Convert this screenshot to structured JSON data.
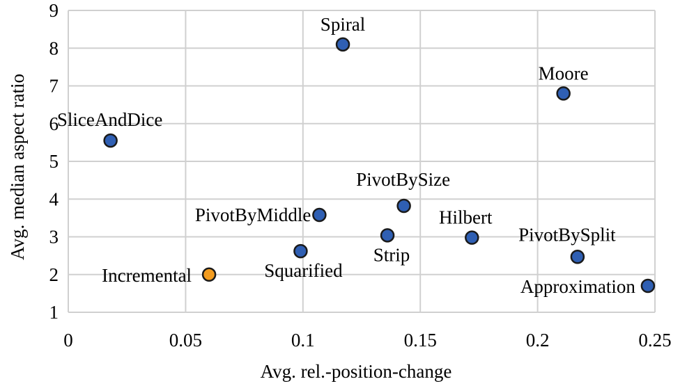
{
  "chart_data": {
    "type": "scatter",
    "title": "",
    "xlabel": "Avg. rel.-position-change",
    "ylabel": "Avg. median aspect ratio",
    "xlim": [
      0,
      0.25
    ],
    "ylim": [
      1,
      9
    ],
    "xticks": [
      0,
      0.05,
      0.1,
      0.15,
      0.2,
      0.25
    ],
    "xtick_labels": [
      "0",
      "0.05",
      "0.1",
      "0.15",
      "0.2",
      "0.25"
    ],
    "yticks": [
      1,
      2,
      3,
      4,
      5,
      6,
      7,
      8,
      9
    ],
    "ytick_labels": [
      "1",
      "2",
      "3",
      "4",
      "5",
      "6",
      "7",
      "8",
      "9"
    ],
    "grid": true,
    "legend": "none",
    "colors": {
      "default": "#2f5fb3",
      "highlight": "#f39c1f",
      "outline": "#1a1a1a"
    },
    "points": [
      {
        "label": "Spiral",
        "x": 0.117,
        "y": 8.1,
        "color": "#2f5fb3"
      },
      {
        "label": "Moore",
        "x": 0.211,
        "y": 6.8,
        "color": "#2f5fb3"
      },
      {
        "label": "SliceAndDice",
        "x": 0.018,
        "y": 5.55,
        "color": "#2f5fb3"
      },
      {
        "label": "PivotBySize",
        "x": 0.143,
        "y": 3.82,
        "color": "#2f5fb3"
      },
      {
        "label": "PivotByMiddle",
        "x": 0.107,
        "y": 3.58,
        "color": "#2f5fb3"
      },
      {
        "label": "Hilbert",
        "x": 0.172,
        "y": 2.98,
        "color": "#2f5fb3"
      },
      {
        "label": "Strip",
        "x": 0.136,
        "y": 3.04,
        "color": "#2f5fb3"
      },
      {
        "label": "PivotBySplit",
        "x": 0.217,
        "y": 2.47,
        "color": "#2f5fb3"
      },
      {
        "label": "Squarified",
        "x": 0.099,
        "y": 2.62,
        "color": "#2f5fb3"
      },
      {
        "label": "Incremental",
        "x": 0.06,
        "y": 2.0,
        "color": "#f39c1f"
      },
      {
        "label": "Approximation",
        "x": 0.247,
        "y": 1.7,
        "color": "#2f5fb3"
      }
    ]
  }
}
